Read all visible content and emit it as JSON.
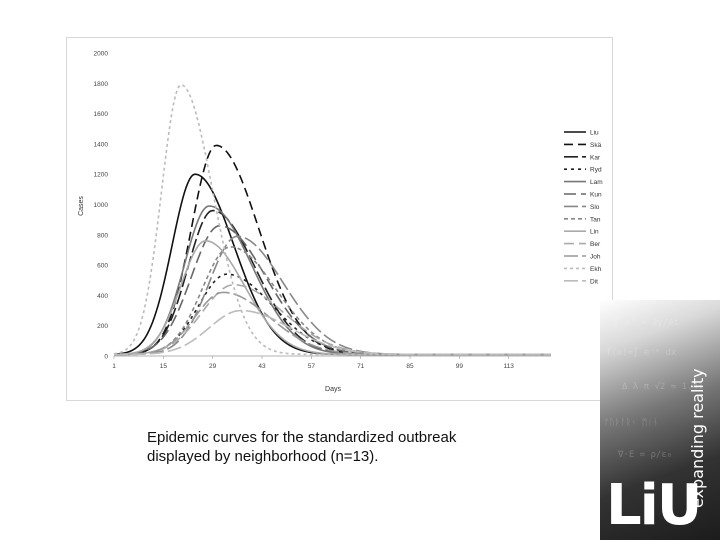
{
  "caption": {
    "line1": "Epidemic curves for the standardized outbreak",
    "line2": "displayed by neighborhood (n=13)."
  },
  "brand": {
    "logo": "LiU",
    "tagline": "expanding reality"
  },
  "chart_data": {
    "type": "line",
    "xlabel": "Days",
    "ylabel": "Cases",
    "xlim": [
      1,
      125
    ],
    "ylim": [
      0,
      2000
    ],
    "xticks": [
      1,
      15,
      29,
      43,
      57,
      71,
      85,
      99,
      113
    ],
    "yticks": [
      0,
      200,
      400,
      600,
      800,
      1000,
      1200,
      1400,
      1600,
      1800,
      2000
    ],
    "legend_position": "right",
    "grid": false,
    "series": [
      {
        "name": "Liu",
        "color": "#111111",
        "dash": "",
        "peak": 1200,
        "peak_day": 24,
        "sigma_left": 6.5,
        "sigma_right": 11
      },
      {
        "name": "Skä",
        "color": "#111111",
        "dash": "9,5",
        "peak": 1390,
        "peak_day": 30,
        "sigma_left": 7,
        "sigma_right": 12
      },
      {
        "name": "Kar",
        "color": "#222222",
        "dash": "14,4",
        "peak": 960,
        "peak_day": 29,
        "sigma_left": 7,
        "sigma_right": 12
      },
      {
        "name": "Ryd",
        "color": "#222222",
        "dash": "3,4",
        "peak": 540,
        "peak_day": 33,
        "sigma_left": 8,
        "sigma_right": 13
      },
      {
        "name": "Lam",
        "color": "#777777",
        "dash": "",
        "peak": 990,
        "peak_day": 28,
        "sigma_left": 7,
        "sigma_right": 12
      },
      {
        "name": "Kun",
        "color": "#666666",
        "dash": "12,5",
        "peak": 860,
        "peak_day": 31,
        "sigma_left": 8,
        "sigma_right": 13
      },
      {
        "name": "Slo",
        "color": "#888888",
        "dash": "14,4",
        "peak": 790,
        "peak_day": 36,
        "sigma_left": 8,
        "sigma_right": 13
      },
      {
        "name": "Tan",
        "color": "#888888",
        "dash": "4,3",
        "peak": 720,
        "peak_day": 34,
        "sigma_left": 8,
        "sigma_right": 13
      },
      {
        "name": "Lin",
        "color": "#aaaaaa",
        "dash": "",
        "peak": 760,
        "peak_day": 27,
        "sigma_left": 7,
        "sigma_right": 11
      },
      {
        "name": "Ber",
        "color": "#aaaaaa",
        "dash": "10,5",
        "peak": 470,
        "peak_day": 35,
        "sigma_left": 9,
        "sigma_right": 14
      },
      {
        "name": "Joh",
        "color": "#999999",
        "dash": "14,4",
        "peak": 420,
        "peak_day": 32,
        "sigma_left": 8,
        "sigma_right": 13
      },
      {
        "name": "Ekh",
        "color": "#bbbbbb",
        "dash": "3,3",
        "peak": 1790,
        "peak_day": 20,
        "sigma_left": 5.5,
        "sigma_right": 9
      },
      {
        "name": "Dit",
        "color": "#bbbbbb",
        "dash": "14,4",
        "peak": 300,
        "peak_day": 37,
        "sigma_left": 9,
        "sigma_right": 14
      }
    ]
  }
}
